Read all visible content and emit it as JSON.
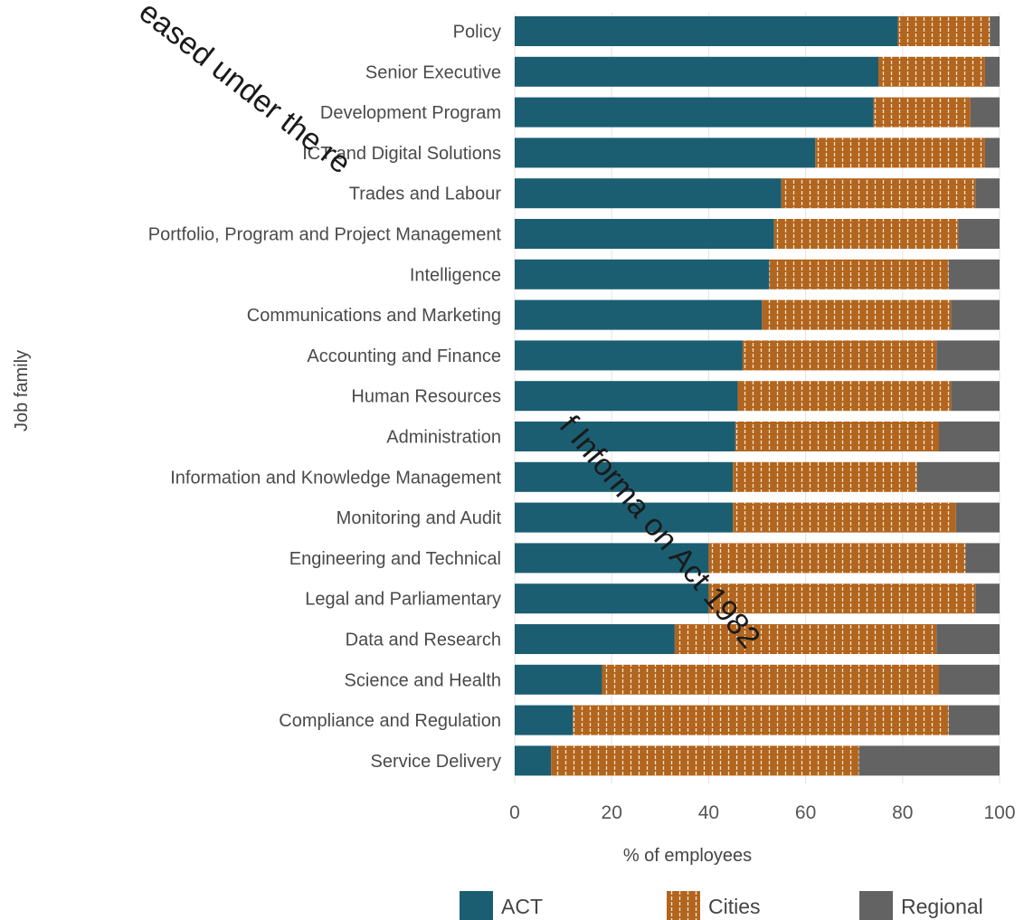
{
  "chart_data": {
    "type": "bar",
    "orientation": "horizontal",
    "stacked": true,
    "xlabel": "% of employees",
    "ylabel": "Job family",
    "xlim": [
      0,
      100
    ],
    "xticks": [
      "0",
      "20",
      "40",
      "60",
      "80",
      "100"
    ],
    "grid": "vertical",
    "legend_position": "bottom",
    "categories": [
      "Policy",
      "Senior Executive",
      "Development Program",
      "ICT and Digital Solutions",
      "Trades and Labour",
      "Portfolio, Program and Project Management",
      "Intelligence",
      "Communications and Marketing",
      "Accounting and Finance",
      "Human Resources",
      "Administration",
      "Information and Knowledge Management",
      "Monitoring and Audit",
      "Engineering and Technical",
      "Legal and Parliamentary",
      "Data and Research",
      "Science and Health",
      "Compliance and Regulation",
      "Service Delivery"
    ],
    "series": [
      {
        "name": "ACT",
        "color": "#1b5e72",
        "values": [
          79,
          75,
          74,
          62,
          55,
          53.5,
          52.5,
          51,
          47,
          46,
          45.5,
          45,
          45,
          40,
          40,
          33,
          18,
          12,
          7.5
        ]
      },
      {
        "name": "Cities",
        "color": "#b2651e",
        "values": [
          19,
          22,
          20,
          35,
          40,
          38,
          37,
          39,
          40,
          44,
          42,
          38,
          46,
          53,
          55,
          54,
          69.5,
          77.5,
          63.5
        ]
      },
      {
        "name": "Regional",
        "color": "#636363",
        "values": [
          2,
          3,
          6,
          3,
          5,
          8.5,
          10.5,
          10,
          13,
          10,
          12.5,
          17,
          9,
          7,
          5,
          13,
          12.5,
          10.5,
          29
        ]
      }
    ]
  },
  "watermark": {
    "fragments": [
      "eased under the re",
      "f Informa on Act 1982"
    ]
  }
}
